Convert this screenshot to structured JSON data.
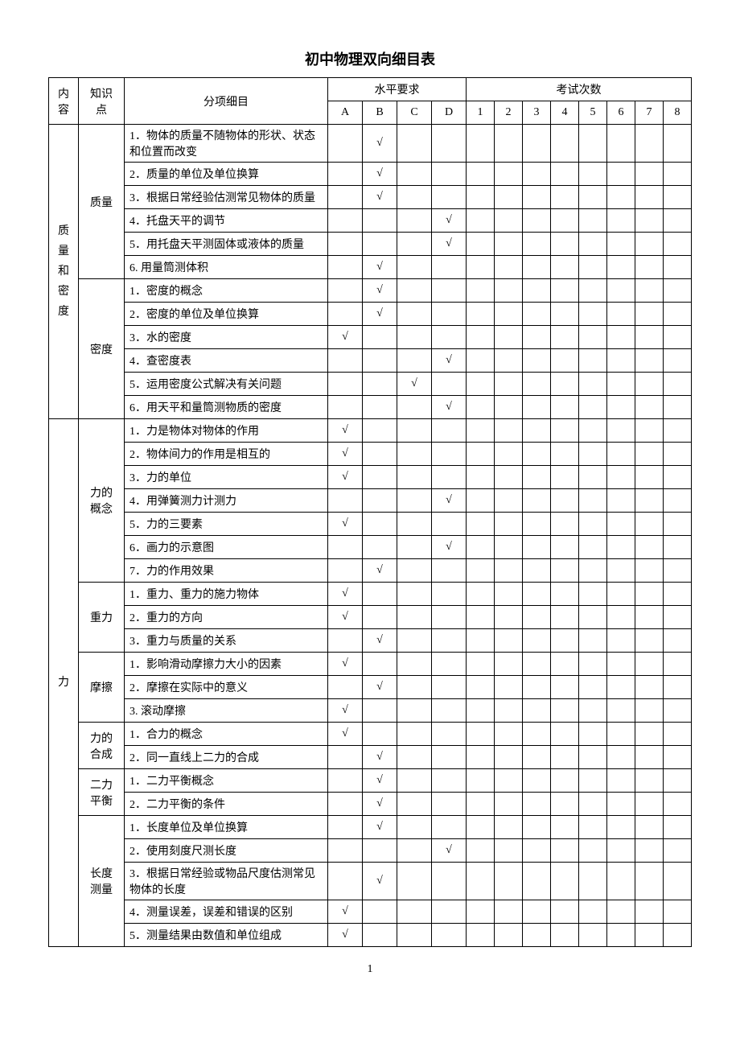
{
  "title": "初中物理双向细目表",
  "page_number": "1",
  "headers": {
    "category": "内容",
    "topic": "知识点",
    "detail": "分项细目",
    "level_group": "水平要求",
    "exam_group": "考试次数",
    "levels": [
      "A",
      "B",
      "C",
      "D"
    ],
    "exams": [
      "1",
      "2",
      "3",
      "4",
      "5",
      "6",
      "7",
      "8"
    ]
  },
  "check": "√",
  "categories": [
    {
      "name": "质量和密度",
      "topics": [
        {
          "name": "质量",
          "rows": [
            {
              "text": "1．物体的质量不随物体的形状、状态和位置而改变",
              "mark": "B"
            },
            {
              "text": "2．质量的单位及单位换算",
              "mark": "B"
            },
            {
              "text": "3．根据日常经验估测常见物体的质量",
              "mark": "B"
            },
            {
              "text": "4．托盘天平的调节",
              "mark": "D"
            },
            {
              "text": "5．用托盘天平测固体或液体的质量",
              "mark": "D"
            },
            {
              "text": "6. 用量筒测体积",
              "mark": "B"
            }
          ]
        },
        {
          "name": "密度",
          "rows": [
            {
              "text": "1．密度的概念",
              "mark": "B"
            },
            {
              "text": "2．密度的单位及单位换算",
              "mark": "B"
            },
            {
              "text": "3．水的密度",
              "mark": "A"
            },
            {
              "text": "4．查密度表",
              "mark": "D"
            },
            {
              "text": "5．运用密度公式解决有关问题",
              "mark": "C"
            },
            {
              "text": "6．用天平和量筒测物质的密度",
              "mark": "D"
            }
          ]
        }
      ]
    },
    {
      "name": "力",
      "topics": [
        {
          "name": "力的概念",
          "rows": [
            {
              "text": "1．力是物体对物体的作用",
              "mark": "A"
            },
            {
              "text": "2．物体间力的作用是相互的",
              "mark": "A"
            },
            {
              "text": "3．力的单位",
              "mark": "A"
            },
            {
              "text": "4．用弹簧测力计测力",
              "mark": "D"
            },
            {
              "text": "5．力的三要素",
              "mark": "A"
            },
            {
              "text": "6．画力的示意图",
              "mark": "D"
            },
            {
              "text": "7．力的作用效果",
              "mark": "B"
            }
          ]
        },
        {
          "name": "重力",
          "rows": [
            {
              "text": "1．重力、重力的施力物体",
              "mark": "A"
            },
            {
              "text": "2．重力的方向",
              "mark": "A"
            },
            {
              "text": "3．重力与质量的关系",
              "mark": "B"
            }
          ]
        },
        {
          "name": "摩擦",
          "rows": [
            {
              "text": "1．影响滑动摩擦力大小的因素",
              "mark": "A"
            },
            {
              "text": "2．摩擦在实际中的意义",
              "mark": "B"
            },
            {
              "text": "3. 滚动摩擦",
              "mark": "A"
            }
          ]
        },
        {
          "name": "力的合成",
          "rows": [
            {
              "text": "1．合力的概念",
              "mark": "A"
            },
            {
              "text": "2．同一直线上二力的合成",
              "mark": "B"
            }
          ]
        },
        {
          "name": "二力平衡",
          "rows": [
            {
              "text": "1．二力平衡概念",
              "mark": "B"
            },
            {
              "text": "2．二力平衡的条件",
              "mark": "B"
            }
          ]
        },
        {
          "name": "长度测量",
          "rows": [
            {
              "text": "1．长度单位及单位换算",
              "mark": "B"
            },
            {
              "text": "2．使用刻度尺测长度",
              "mark": "D"
            },
            {
              "text": "3．根据日常经验或物品尺度估测常见物体的长度",
              "mark": "B"
            },
            {
              "text": "4．测量误差，误差和错误的区别",
              "mark": "A"
            },
            {
              "text": "5．测量结果由数值和单位组成",
              "mark": "A"
            }
          ]
        }
      ]
    }
  ]
}
